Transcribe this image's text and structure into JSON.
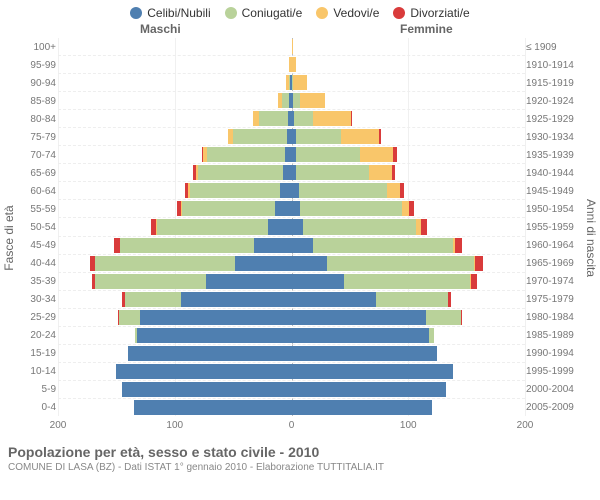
{
  "legend": [
    {
      "label": "Celibi/Nubili",
      "color": "#4f7fb0"
    },
    {
      "label": "Coniugati/e",
      "color": "#b9d29a"
    },
    {
      "label": "Vedovi/e",
      "color": "#f9c66a"
    },
    {
      "label": "Divorziati/e",
      "color": "#d93b3b"
    }
  ],
  "header": {
    "male": "Maschi",
    "female": "Femmine"
  },
  "axes": {
    "left_title": "Fasce di età",
    "right_title": "Anni di nascita",
    "xmax": 200,
    "xticks": [
      200,
      100,
      0,
      100,
      200
    ]
  },
  "colors": {
    "single": "#4f7fb0",
    "married": "#b9d29a",
    "widowed": "#f9c66a",
    "divorced": "#d93b3b",
    "grid": "#f0f0f0",
    "center": "#bbbbbb",
    "bg": "#ffffff"
  },
  "rows": [
    {
      "age": "100+",
      "birth": "≤ 1909",
      "m": [
        0,
        0,
        0,
        0
      ],
      "f": [
        0,
        0,
        1,
        0
      ]
    },
    {
      "age": "95-99",
      "birth": "1910-1914",
      "m": [
        0,
        0,
        2,
        0
      ],
      "f": [
        0,
        0,
        4,
        0
      ]
    },
    {
      "age": "90-94",
      "birth": "1915-1919",
      "m": [
        1,
        1,
        3,
        0
      ],
      "f": [
        0,
        1,
        12,
        0
      ]
    },
    {
      "age": "85-89",
      "birth": "1920-1924",
      "m": [
        2,
        6,
        4,
        0
      ],
      "f": [
        1,
        6,
        22,
        0
      ]
    },
    {
      "age": "80-84",
      "birth": "1925-1929",
      "m": [
        3,
        25,
        5,
        0
      ],
      "f": [
        2,
        16,
        33,
        1
      ]
    },
    {
      "age": "75-79",
      "birth": "1930-1934",
      "m": [
        4,
        46,
        4,
        0
      ],
      "f": [
        4,
        38,
        33,
        2
      ]
    },
    {
      "age": "70-74",
      "birth": "1935-1939",
      "m": [
        6,
        66,
        4,
        1
      ],
      "f": [
        4,
        55,
        28,
        3
      ]
    },
    {
      "age": "65-69",
      "birth": "1940-1944",
      "m": [
        7,
        73,
        2,
        2
      ],
      "f": [
        4,
        62,
        20,
        3
      ]
    },
    {
      "age": "60-64",
      "birth": "1945-1949",
      "m": [
        10,
        77,
        2,
        2
      ],
      "f": [
        6,
        76,
        11,
        3
      ]
    },
    {
      "age": "55-59",
      "birth": "1950-1954",
      "m": [
        14,
        80,
        1,
        3
      ],
      "f": [
        7,
        88,
        6,
        4
      ]
    },
    {
      "age": "50-54",
      "birth": "1955-1959",
      "m": [
        20,
        95,
        1,
        4
      ],
      "f": [
        10,
        97,
        4,
        5
      ]
    },
    {
      "age": "45-49",
      "birth": "1960-1964",
      "m": [
        32,
        115,
        0,
        5
      ],
      "f": [
        18,
        120,
        2,
        6
      ]
    },
    {
      "age": "40-44",
      "birth": "1965-1969",
      "m": [
        48,
        120,
        0,
        5
      ],
      "f": [
        30,
        126,
        1,
        7
      ]
    },
    {
      "age": "35-39",
      "birth": "1970-1974",
      "m": [
        73,
        95,
        0,
        3
      ],
      "f": [
        45,
        108,
        1,
        5
      ]
    },
    {
      "age": "30-34",
      "birth": "1975-1979",
      "m": [
        95,
        48,
        0,
        2
      ],
      "f": [
        72,
        62,
        0,
        3
      ]
    },
    {
      "age": "25-29",
      "birth": "1980-1984",
      "m": [
        130,
        18,
        0,
        1
      ],
      "f": [
        115,
        30,
        0,
        1
      ]
    },
    {
      "age": "20-24",
      "birth": "1985-1989",
      "m": [
        132,
        2,
        0,
        0
      ],
      "f": [
        118,
        4,
        0,
        0
      ]
    },
    {
      "age": "15-19",
      "birth": "1990-1994",
      "m": [
        140,
        0,
        0,
        0
      ],
      "f": [
        125,
        0,
        0,
        0
      ]
    },
    {
      "age": "10-14",
      "birth": "1995-1999",
      "m": [
        150,
        0,
        0,
        0
      ],
      "f": [
        138,
        0,
        0,
        0
      ]
    },
    {
      "age": "5-9",
      "birth": "2000-2004",
      "m": [
        145,
        0,
        0,
        0
      ],
      "f": [
        132,
        0,
        0,
        0
      ]
    },
    {
      "age": "0-4",
      "birth": "2005-2009",
      "m": [
        135,
        0,
        0,
        0
      ],
      "f": [
        120,
        0,
        0,
        0
      ]
    }
  ],
  "footer": {
    "title": "Popolazione per età, sesso e stato civile - 2010",
    "subtitle": "COMUNE DI LASA (BZ) - Dati ISTAT 1° gennaio 2010 - Elaborazione TUTTITALIA.IT"
  }
}
